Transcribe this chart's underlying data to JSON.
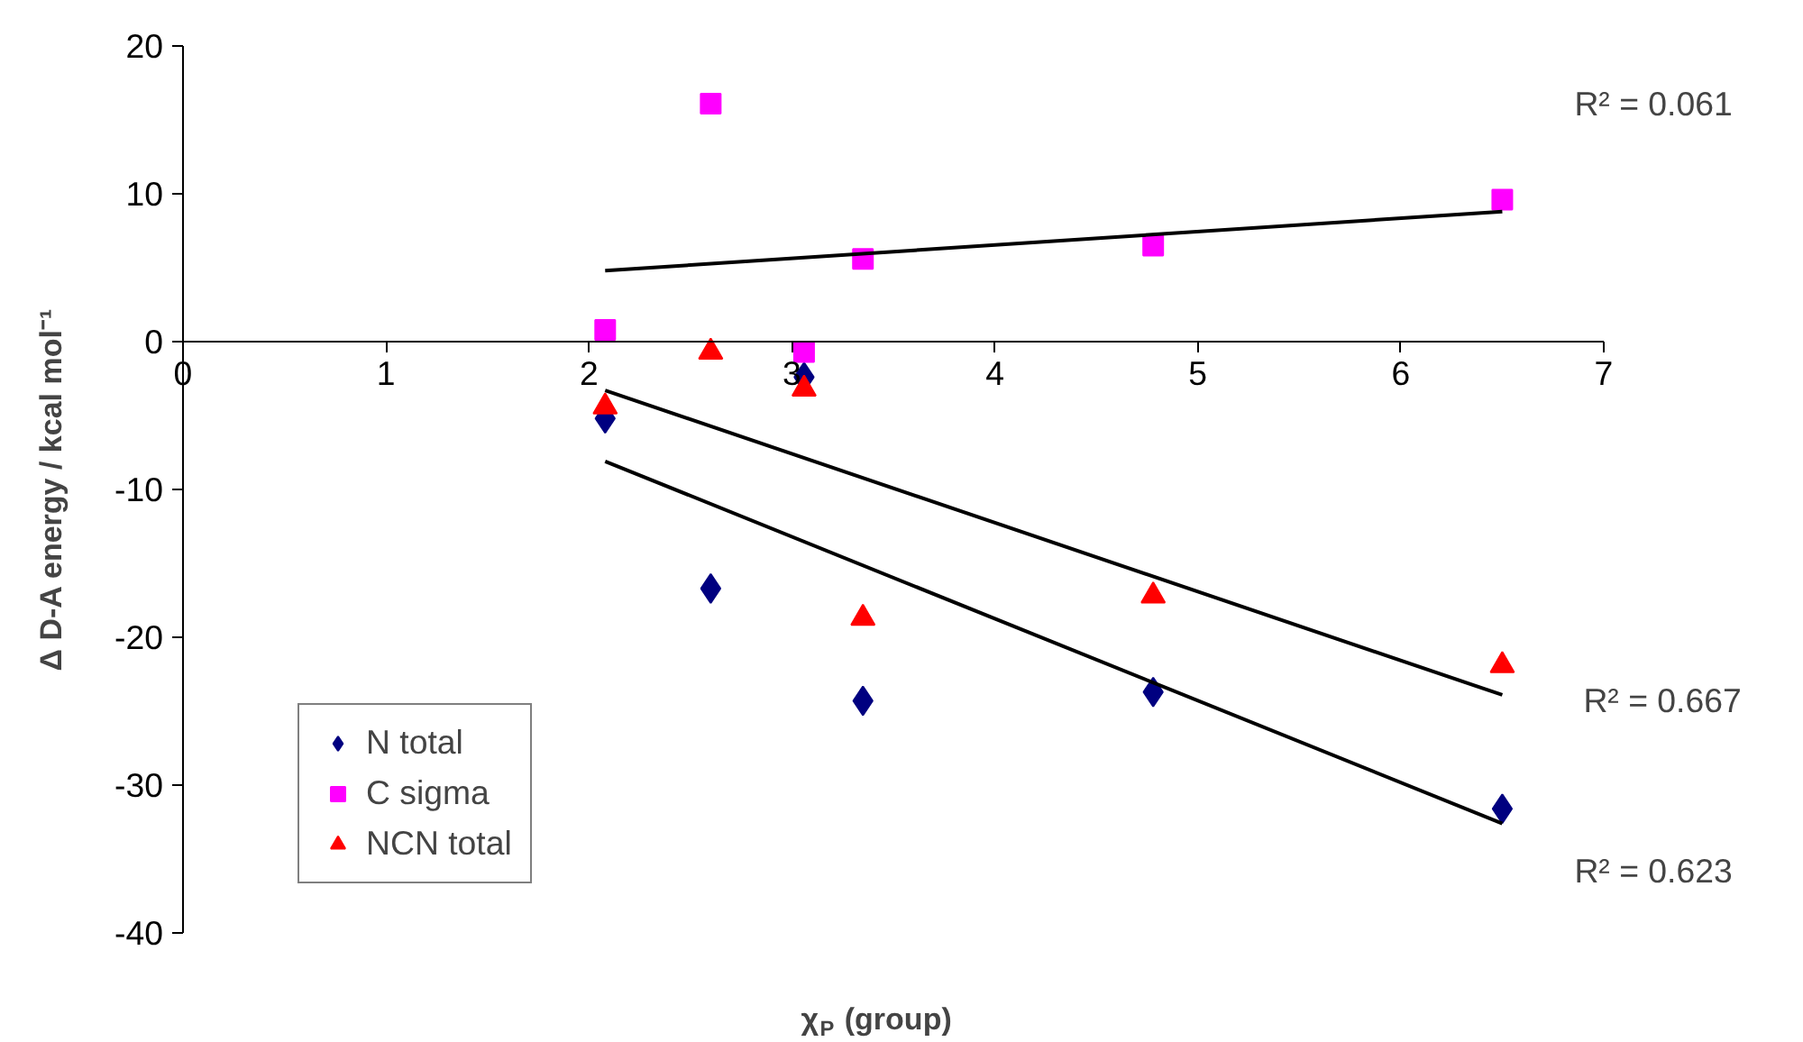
{
  "chart_data": {
    "type": "scatter",
    "xlabel": "χ$_{P}$ (group)",
    "ylabel": "Δ D-A energy / kcal mol⁻¹",
    "xlim": [
      0,
      7
    ],
    "xticks": [
      0,
      1,
      2,
      3,
      4,
      5,
      6,
      7
    ],
    "ylim": [
      -40,
      20
    ],
    "yticks": [
      -40,
      -30,
      -20,
      -10,
      0,
      10,
      20
    ],
    "grid": false,
    "legend": "bottom left",
    "series": [
      {
        "name": "N total",
        "color": "#000080",
        "marker": "diamond",
        "x": [
          2.08,
          2.6,
          3.06,
          3.35,
          4.78,
          6.5
        ],
        "values": [
          -5.2,
          -16.7,
          -2.4,
          -24.3,
          -23.7,
          -31.6
        ]
      },
      {
        "name": "C sigma",
        "color": "#ff00ff",
        "marker": "square",
        "x": [
          2.08,
          2.6,
          3.06,
          3.35,
          4.78,
          6.5
        ],
        "values": [
          0.8,
          16.1,
          -0.7,
          5.6,
          6.5,
          9.6
        ]
      },
      {
        "name": "NCN total",
        "color": "#ff0000",
        "marker": "triangle",
        "x": [
          2.08,
          2.6,
          3.06,
          3.35,
          4.78,
          6.5
        ],
        "values": [
          -4.4,
          -0.7,
          -3.2,
          -18.7,
          -17.2,
          -21.9
        ]
      },
      {
        "type": "line",
        "color": "#000000",
        "x": [
          2.08,
          6.5
        ],
        "values": [
          4.8,
          8.8
        ]
      },
      {
        "type": "line",
        "color": "#000000",
        "x": [
          2.08,
          6.5
        ],
        "values": [
          -3.3,
          -23.9
        ]
      },
      {
        "type": "line",
        "color": "#000000",
        "x": [
          2.08,
          6.5
        ],
        "values": [
          -8.1,
          -32.6
        ]
      }
    ],
    "annotations": [
      "R² = 0.061",
      "R² = 0.667",
      "R² = 0.623"
    ]
  }
}
